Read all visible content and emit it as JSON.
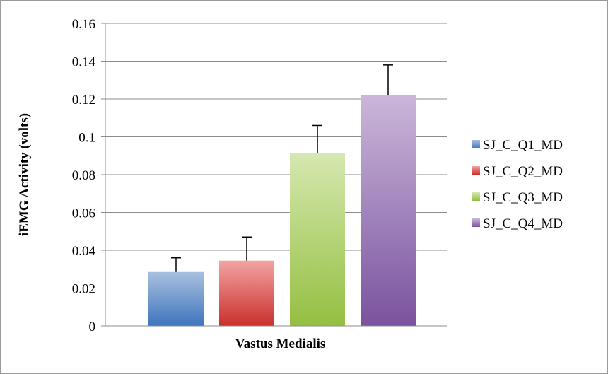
{
  "chart_data": {
    "type": "bar",
    "title": "",
    "xlabel": "Vastus Medialis",
    "ylabel": "iEMG Activity (volts)",
    "ylim": [
      0,
      0.16
    ],
    "yticks": [
      "0",
      "0.02",
      "0.04",
      "0.06",
      "0.08",
      "0.1",
      "0.12",
      "0.14",
      "0.16"
    ],
    "grid": true,
    "legend_position": "right",
    "categories": [
      "Vastus Medialis"
    ],
    "series": [
      {
        "name": "SJ_C_Q1_MD",
        "value": 0.0285,
        "error": 0.0075,
        "color_light": "#a9c0df",
        "color_dark": "#3e75bd"
      },
      {
        "name": "SJ_C_Q2_MD",
        "value": 0.0345,
        "error": 0.0125,
        "color_light": "#f2a4a3",
        "color_dark": "#c9302c"
      },
      {
        "name": "SJ_C_Q3_MD",
        "value": 0.0915,
        "error": 0.0145,
        "color_light": "#d6e8b0",
        "color_dark": "#94bf41"
      },
      {
        "name": "SJ_C_Q4_MD",
        "value": 0.122,
        "error": 0.016,
        "color_light": "#cbb7d9",
        "color_dark": "#7a529f"
      }
    ]
  }
}
